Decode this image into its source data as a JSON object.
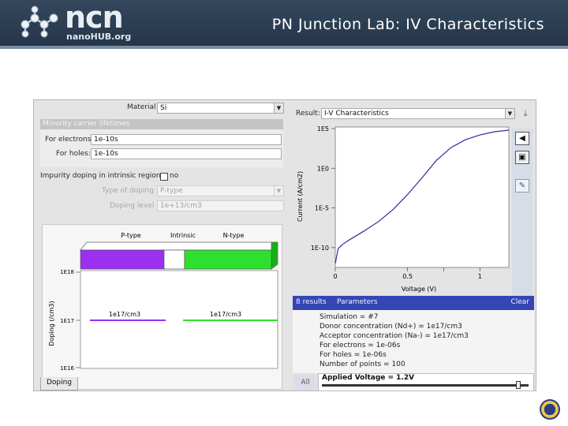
{
  "header": {
    "logo_text": "ncn",
    "logo_subtext": "nanoHUB.org",
    "title": "PN Junction Lab: IV Characteristics"
  },
  "left_panel": {
    "material_label": "Material",
    "material_value": "Si",
    "minority_group_label": "Minority carrier lifetimes",
    "electrons_label": "For electrons:",
    "electrons_value": "1e-10s",
    "holes_label": "For holes:",
    "holes_value": "1e-10s",
    "intrinsic_label": "Impurity doping in intrinsic region:",
    "intrinsic_checkbox_label": "no",
    "type_doping_label": "Type of doping",
    "type_doping_value": "P-type",
    "doping_level_label": "Doping level",
    "doping_level_value": "1e+13/cm3",
    "doping_tab_label": "Doping",
    "diagram": {
      "region_labels": [
        "P-type",
        "Intrinsic",
        "N-type"
      ],
      "region_colors": [
        "#9b30f0",
        "#ffffff",
        "#2ee02e"
      ],
      "y_axis_label": "Doping (/cm3)",
      "y_ticks": [
        "1E18",
        "1E17",
        "1E16"
      ],
      "p_level_label": "1e17/cm3",
      "n_level_label": "1e17/cm3"
    }
  },
  "right_panel": {
    "result_label": "Result:",
    "result_value": "I-V Characteristics",
    "results_header_left": "8 results",
    "results_header_mid": "Parameters",
    "results_header_clear": "Clear",
    "parameters": [
      "Simulation = #7",
      "Donor concentration (Nd+) = 1e17/cm3",
      "Acceptor concentration (Na-) = 1e17/cm3",
      "For electrons = 1e-06s",
      "For holes = 1e-06s",
      "Number of points = 100"
    ],
    "slider_number": "All",
    "slider_label": "Applied Voltage = 1.2V",
    "slider_value_fraction": 0.96
  },
  "chart_data": {
    "type": "line",
    "title": "",
    "xlabel": "Voltage (V)",
    "ylabel": "Current (A/cm2)",
    "xlim": [
      0,
      1.2
    ],
    "ylim": [
      -12.5,
      5.2
    ],
    "yscale": "log",
    "x_ticks": [
      "0",
      "0.5",
      "1"
    ],
    "y_ticks": [
      "1E5",
      "1E0",
      "1E-5",
      "1E-10"
    ],
    "series": [
      {
        "color": "#2a2aa0",
        "x": [
          0.0,
          0.02,
          0.05,
          0.1,
          0.2,
          0.3,
          0.4,
          0.5,
          0.6,
          0.7,
          0.8,
          0.9,
          1.0,
          1.1,
          1.2
        ],
        "y": [
          -12.0,
          -10.1,
          -9.6,
          -9.0,
          -7.9,
          -6.7,
          -5.2,
          -3.3,
          -1.2,
          1.0,
          2.6,
          3.6,
          4.2,
          4.6,
          4.8
        ]
      }
    ]
  }
}
